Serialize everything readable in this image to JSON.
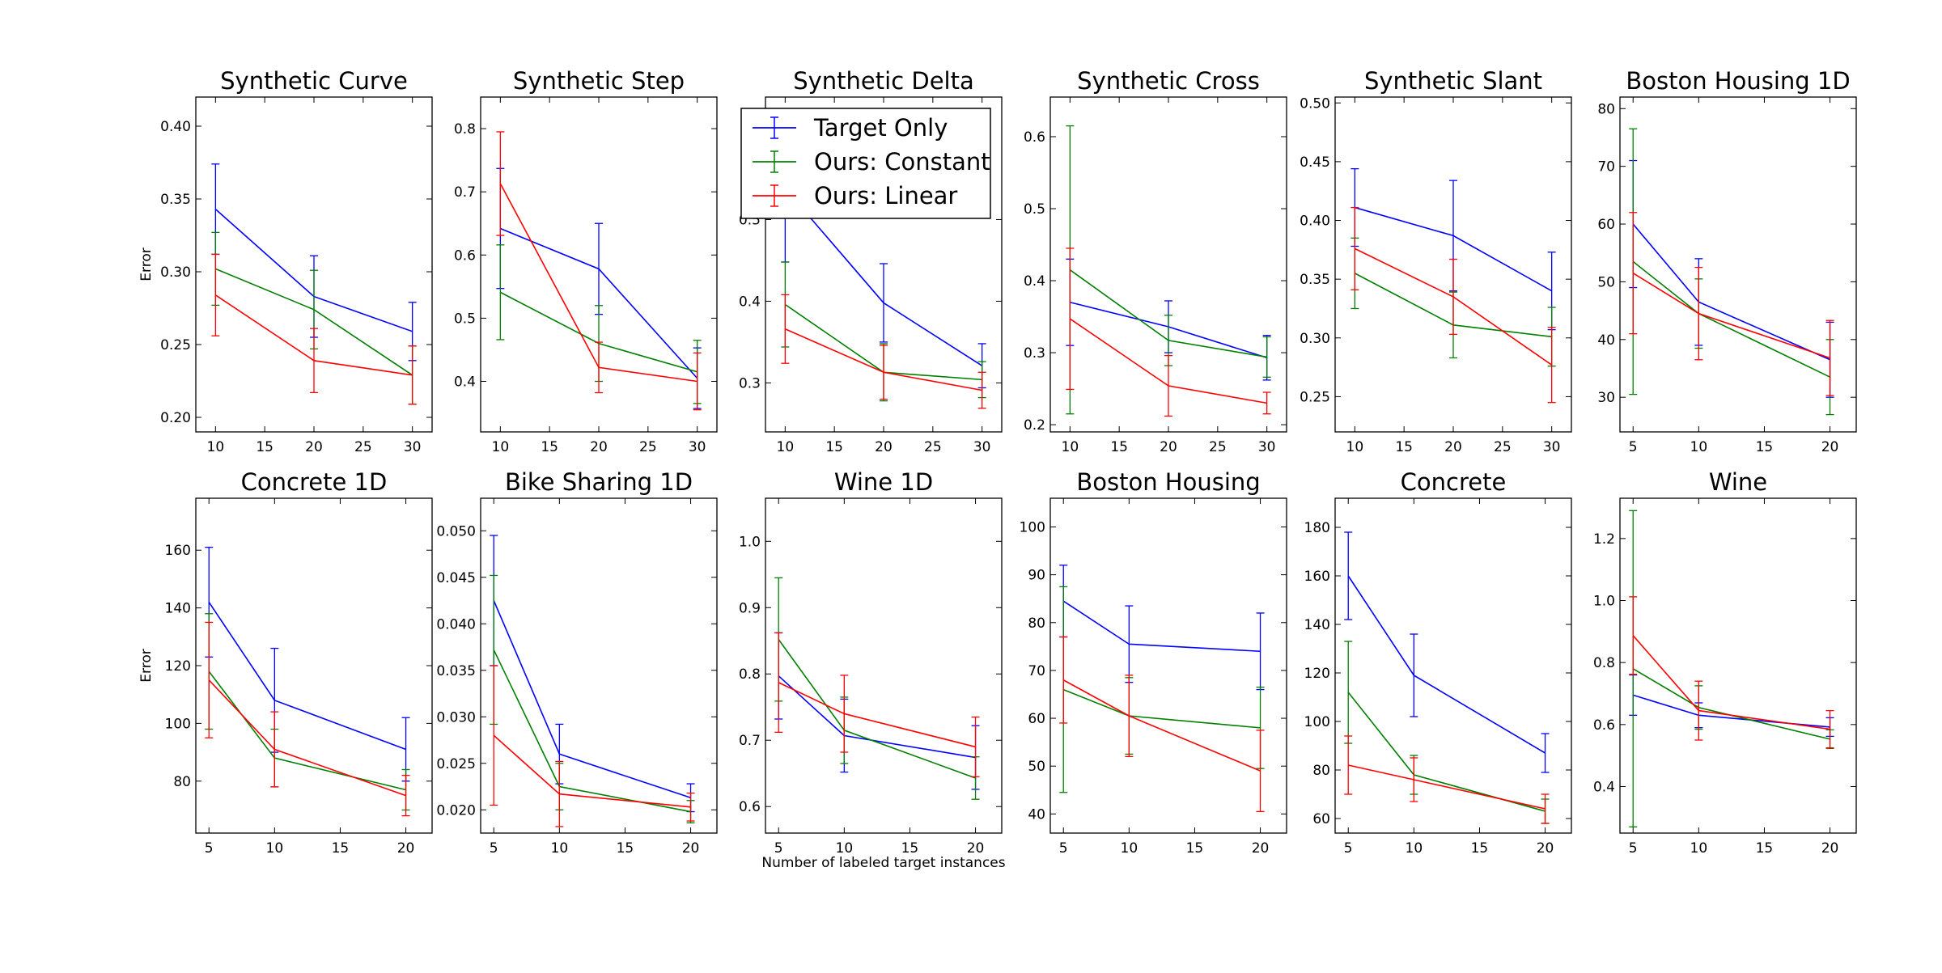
{
  "figure": {
    "xlabel": "Number of labeled target instances",
    "ylabel": "Error"
  },
  "legend": {
    "position": "top-center",
    "entries": [
      {
        "name": "Target Only",
        "color": "#0000ff"
      },
      {
        "name": "Ours: Constant",
        "color": "#008000"
      },
      {
        "name": "Ours: Linear",
        "color": "#ff0000"
      }
    ]
  },
  "chart_data": [
    {
      "type": "line",
      "title": "Synthetic Curve",
      "ylabel": "Error",
      "xlabel": "",
      "x": [
        10,
        20,
        30
      ],
      "xlim": [
        8,
        32
      ],
      "ylim": [
        0.19,
        0.42
      ],
      "xticks": [
        "10",
        "15",
        "20",
        "25",
        "30"
      ],
      "yticks": [
        "0.20",
        "0.25",
        "0.30",
        "0.35",
        "0.40"
      ],
      "series": [
        {
          "name": "Target Only",
          "values": [
            0.343,
            0.283,
            0.259
          ],
          "err": [
            0.031,
            0.028,
            0.02
          ]
        },
        {
          "name": "Ours: Constant",
          "values": [
            0.302,
            0.274,
            0.229
          ],
          "err": [
            0.025,
            0.027,
            0.02
          ]
        },
        {
          "name": "Ours: Linear",
          "values": [
            0.284,
            0.239,
            0.229
          ],
          "err": [
            0.028,
            0.022,
            0.02
          ]
        }
      ]
    },
    {
      "type": "line",
      "title": "Synthetic Step",
      "ylabel": "",
      "xlabel": "",
      "x": [
        10,
        20,
        30
      ],
      "xlim": [
        8,
        32
      ],
      "ylim": [
        0.32,
        0.85
      ],
      "xticks": [
        "10",
        "15",
        "20",
        "25",
        "30"
      ],
      "yticks": [
        "0.4",
        "0.5",
        "0.6",
        "0.7",
        "0.8"
      ],
      "series": [
        {
          "name": "Target Only",
          "values": [
            0.642,
            0.578,
            0.405
          ],
          "err": [
            0.095,
            0.072,
            0.048
          ]
        },
        {
          "name": "Ours: Constant",
          "values": [
            0.541,
            0.46,
            0.415
          ],
          "err": [
            0.075,
            0.06,
            0.05
          ]
        },
        {
          "name": "Ours: Linear",
          "values": [
            0.713,
            0.422,
            0.4
          ],
          "err": [
            0.082,
            0.04,
            0.045
          ]
        }
      ]
    },
    {
      "type": "line",
      "title": "Synthetic Delta",
      "ylabel": "",
      "xlabel": "",
      "x": [
        10,
        20,
        30
      ],
      "xlim": [
        8,
        32
      ],
      "ylim": [
        0.24,
        0.65
      ],
      "xticks": [
        "10",
        "15",
        "20",
        "25",
        "30"
      ],
      "yticks": [
        "0.3",
        "0.4",
        "0.5"
      ],
      "series": [
        {
          "name": "Target Only",
          "values": [
            0.538,
            0.398,
            0.321
          ],
          "err": [
            0.09,
            0.048,
            0.027
          ]
        },
        {
          "name": "Ours: Constant",
          "values": [
            0.396,
            0.313,
            0.304
          ],
          "err": [
            0.052,
            0.035,
            0.022
          ]
        },
        {
          "name": "Ours: Linear",
          "values": [
            0.366,
            0.313,
            0.291
          ],
          "err": [
            0.042,
            0.033,
            0.022
          ]
        }
      ]
    },
    {
      "type": "line",
      "title": "Synthetic Cross",
      "ylabel": "",
      "xlabel": "",
      "x": [
        10,
        20,
        30
      ],
      "xlim": [
        8,
        32
      ],
      "ylim": [
        0.19,
        0.655
      ],
      "xticks": [
        "10",
        "15",
        "20",
        "25",
        "30"
      ],
      "yticks": [
        "0.2",
        "0.3",
        "0.4",
        "0.5",
        "0.6"
      ],
      "series": [
        {
          "name": "Target Only",
          "values": [
            0.37,
            0.336,
            0.293
          ],
          "err": [
            0.06,
            0.036,
            0.031
          ]
        },
        {
          "name": "Ours: Constant",
          "values": [
            0.415,
            0.317,
            0.294
          ],
          "err": [
            0.2,
            0.035,
            0.028
          ]
        },
        {
          "name": "Ours: Linear",
          "values": [
            0.347,
            0.254,
            0.23
          ],
          "err": [
            0.098,
            0.042,
            0.015
          ]
        }
      ]
    },
    {
      "type": "line",
      "title": "Synthetic Slant",
      "ylabel": "",
      "xlabel": "",
      "x": [
        10,
        20,
        30
      ],
      "xlim": [
        8,
        32
      ],
      "ylim": [
        0.22,
        0.505
      ],
      "xticks": [
        "10",
        "15",
        "20",
        "25",
        "30"
      ],
      "yticks": [
        "0.25",
        "0.30",
        "0.35",
        "0.40",
        "0.45",
        "0.50"
      ],
      "series": [
        {
          "name": "Target Only",
          "values": [
            0.411,
            0.387,
            0.34
          ],
          "err": [
            0.033,
            0.047,
            0.033
          ]
        },
        {
          "name": "Ours: Constant",
          "values": [
            0.355,
            0.311,
            0.301
          ],
          "err": [
            0.03,
            0.028,
            0.025
          ]
        },
        {
          "name": "Ours: Linear",
          "values": [
            0.376,
            0.335,
            0.277
          ],
          "err": [
            0.035,
            0.032,
            0.032
          ]
        }
      ]
    },
    {
      "type": "line",
      "title": "Boston Housing 1D",
      "ylabel": "",
      "xlabel": "",
      "x": [
        5,
        10,
        20
      ],
      "xlim": [
        4,
        22
      ],
      "ylim": [
        24,
        82
      ],
      "xticks": [
        "5",
        "10",
        "15",
        "20"
      ],
      "yticks": [
        "30",
        "40",
        "50",
        "60",
        "70",
        "80"
      ],
      "series": [
        {
          "name": "Target Only",
          "values": [
            60.0,
            46.5,
            36.5
          ],
          "err": [
            11.0,
            7.5,
            6.5
          ]
        },
        {
          "name": "Ours: Constant",
          "values": [
            53.5,
            44.5,
            33.5
          ],
          "err": [
            23.0,
            6.0,
            6.5
          ]
        },
        {
          "name": "Ours: Linear",
          "values": [
            51.5,
            44.5,
            36.8
          ],
          "err": [
            10.5,
            8.0,
            6.5
          ]
        }
      ]
    },
    {
      "type": "line",
      "title": "Concrete 1D",
      "ylabel": "Error",
      "xlabel": "",
      "x": [
        5,
        10,
        20
      ],
      "xlim": [
        4,
        22
      ],
      "ylim": [
        62,
        178
      ],
      "xticks": [
        "5",
        "10",
        "15",
        "20"
      ],
      "yticks": [
        "80",
        "100",
        "120",
        "140",
        "160"
      ],
      "series": [
        {
          "name": "Target Only",
          "values": [
            142,
            108,
            91
          ],
          "err": [
            19,
            18,
            11
          ]
        },
        {
          "name": "Ours: Constant",
          "values": [
            118,
            88,
            77
          ],
          "err": [
            20,
            10,
            7
          ]
        },
        {
          "name": "Ours: Linear",
          "values": [
            115,
            91,
            75
          ],
          "err": [
            20,
            13,
            7
          ]
        }
      ]
    },
    {
      "type": "line",
      "title": "Bike Sharing 1D",
      "ylabel": "",
      "xlabel": "",
      "x": [
        5,
        10,
        20
      ],
      "xlim": [
        4,
        22
      ],
      "ylim": [
        0.0175,
        0.0535
      ],
      "xticks": [
        "5",
        "10",
        "15",
        "20"
      ],
      "yticks": [
        "0.020",
        "0.025",
        "0.030",
        "0.035",
        "0.040",
        "0.045",
        "0.050"
      ],
      "series": [
        {
          "name": "Target Only",
          "values": [
            0.0425,
            0.026,
            0.0213
          ],
          "err": [
            0.007,
            0.0032,
            0.0015
          ]
        },
        {
          "name": "Ours: Constant",
          "values": [
            0.0372,
            0.0225,
            0.0198
          ],
          "err": [
            0.008,
            0.0025,
            0.0012
          ]
        },
        {
          "name": "Ours: Linear",
          "values": [
            0.028,
            0.0217,
            0.0203
          ],
          "err": [
            0.0075,
            0.0035,
            0.0015
          ]
        }
      ]
    },
    {
      "type": "line",
      "title": "Wine 1D",
      "ylabel": "",
      "xlabel": "Number of labeled target instances",
      "x": [
        5,
        10,
        20
      ],
      "xlim": [
        4,
        22
      ],
      "ylim": [
        0.56,
        1.065
      ],
      "xticks": [
        "5",
        "10",
        "15",
        "20"
      ],
      "yticks": [
        "0.6",
        "0.7",
        "0.8",
        "0.9",
        "1.0"
      ],
      "series": [
        {
          "name": "Target Only",
          "values": [
            0.797,
            0.707,
            0.674
          ],
          "err": [
            0.065,
            0.055,
            0.048
          ]
        },
        {
          "name": "Ours: Constant",
          "values": [
            0.852,
            0.715,
            0.643
          ],
          "err": [
            0.093,
            0.05,
            0.032
          ]
        },
        {
          "name": "Ours: Linear",
          "values": [
            0.787,
            0.74,
            0.69
          ],
          "err": [
            0.075,
            0.058,
            0.045
          ]
        }
      ]
    },
    {
      "type": "line",
      "title": "Boston Housing",
      "ylabel": "",
      "xlabel": "",
      "x": [
        5,
        10,
        20
      ],
      "xlim": [
        4,
        22
      ],
      "ylim": [
        36,
        106
      ],
      "xticks": [
        "5",
        "10",
        "15",
        "20"
      ],
      "yticks": [
        "40",
        "50",
        "60",
        "70",
        "80",
        "90",
        "100"
      ],
      "series": [
        {
          "name": "Target Only",
          "values": [
            84.5,
            75.5,
            74.0
          ],
          "err": [
            7.5,
            8.0,
            8.0
          ]
        },
        {
          "name": "Ours: Constant",
          "values": [
            66.0,
            60.5,
            58.0
          ],
          "err": [
            21.5,
            8.0,
            8.5
          ]
        },
        {
          "name": "Ours: Linear",
          "values": [
            68.0,
            60.5,
            49.0
          ],
          "err": [
            9.0,
            8.5,
            8.5
          ]
        }
      ]
    },
    {
      "type": "line",
      "title": "Concrete",
      "ylabel": "",
      "xlabel": "",
      "x": [
        5,
        10,
        20
      ],
      "xlim": [
        4,
        22
      ],
      "ylim": [
        54,
        192
      ],
      "xticks": [
        "5",
        "10",
        "15",
        "20"
      ],
      "yticks": [
        "60",
        "80",
        "100",
        "120",
        "140",
        "160",
        "180"
      ],
      "series": [
        {
          "name": "Target Only",
          "values": [
            160,
            119,
            87
          ],
          "err": [
            18,
            17,
            8
          ]
        },
        {
          "name": "Ours: Constant",
          "values": [
            112,
            78,
            63
          ],
          "err": [
            21,
            8,
            5
          ]
        },
        {
          "name": "Ours: Linear",
          "values": [
            82,
            76,
            64
          ],
          "err": [
            12,
            9,
            6
          ]
        }
      ]
    },
    {
      "type": "line",
      "title": "Wine",
      "ylabel": "",
      "xlabel": "",
      "x": [
        5,
        10,
        20
      ],
      "xlim": [
        4,
        22
      ],
      "ylim": [
        0.25,
        1.33
      ],
      "xticks": [
        "5",
        "10",
        "15",
        "20"
      ],
      "yticks": [
        "0.4",
        "0.6",
        "0.8",
        "1.0",
        "1.2"
      ],
      "series": [
        {
          "name": "Target Only",
          "values": [
            0.695,
            0.63,
            0.592
          ],
          "err": [
            0.065,
            0.04,
            0.03
          ]
        },
        {
          "name": "Ours: Constant",
          "values": [
            0.78,
            0.655,
            0.553
          ],
          "err": [
            0.51,
            0.07,
            0.03
          ]
        },
        {
          "name": "Ours: Linear",
          "values": [
            0.887,
            0.645,
            0.585
          ],
          "err": [
            0.125,
            0.095,
            0.06
          ]
        }
      ]
    }
  ]
}
